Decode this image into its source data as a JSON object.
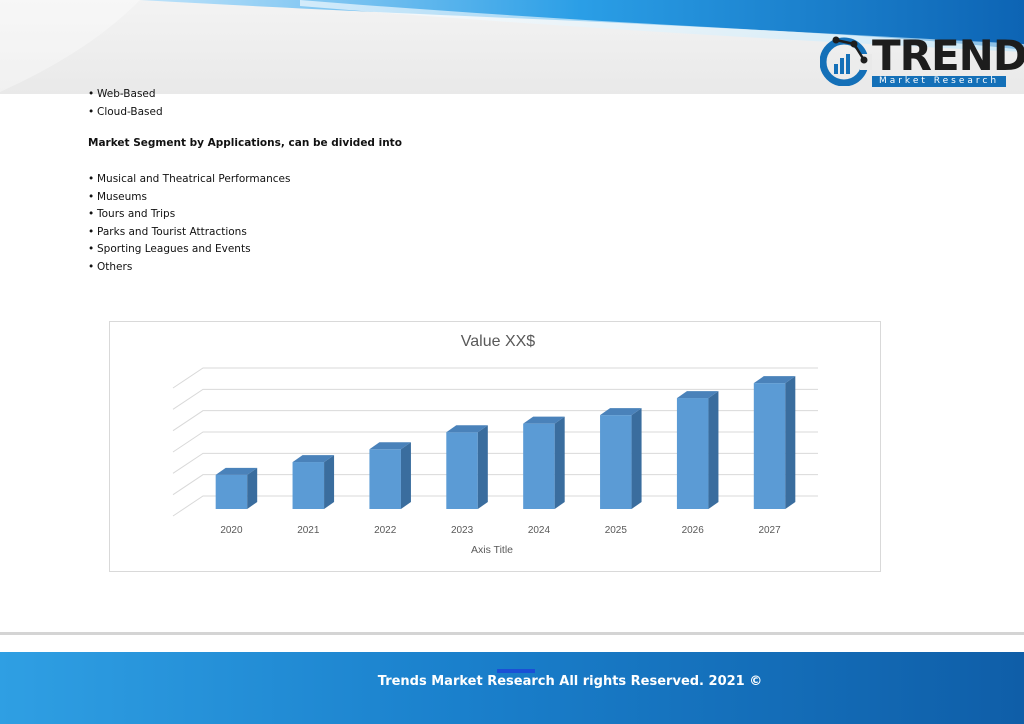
{
  "brand": {
    "name": "TRENDS",
    "tagline": "Market Research",
    "colors": {
      "blue": "#1470b8",
      "dark": "#1d1d1d",
      "footer": "#1a80cc"
    }
  },
  "top_list": [
    "Web-Based",
    "Cloud-Based"
  ],
  "applications": {
    "heading": "Market Segment by Applications, can be divided into",
    "items": [
      "Musical and Theatrical Performances",
      "Museums",
      "Tours and Trips",
      "Parks and Tourist Attractions",
      "Sporting Leagues and Events",
      "Others"
    ]
  },
  "chart_data": {
    "type": "bar",
    "title": "Value XX$",
    "xlabel": "Axis Title",
    "ylabel": "",
    "categories": [
      "2020",
      "2021",
      "2022",
      "2023",
      "2024",
      "2025",
      "2026",
      "2027"
    ],
    "values": [
      1.6,
      2.2,
      2.8,
      3.6,
      4.0,
      4.4,
      5.2,
      5.9
    ],
    "ylim": [
      0,
      6
    ],
    "grid": true,
    "bar_color": "#5b9bd5"
  },
  "footer": {
    "text": "Trends Market Research All rights Reserved. 2021 ©"
  }
}
